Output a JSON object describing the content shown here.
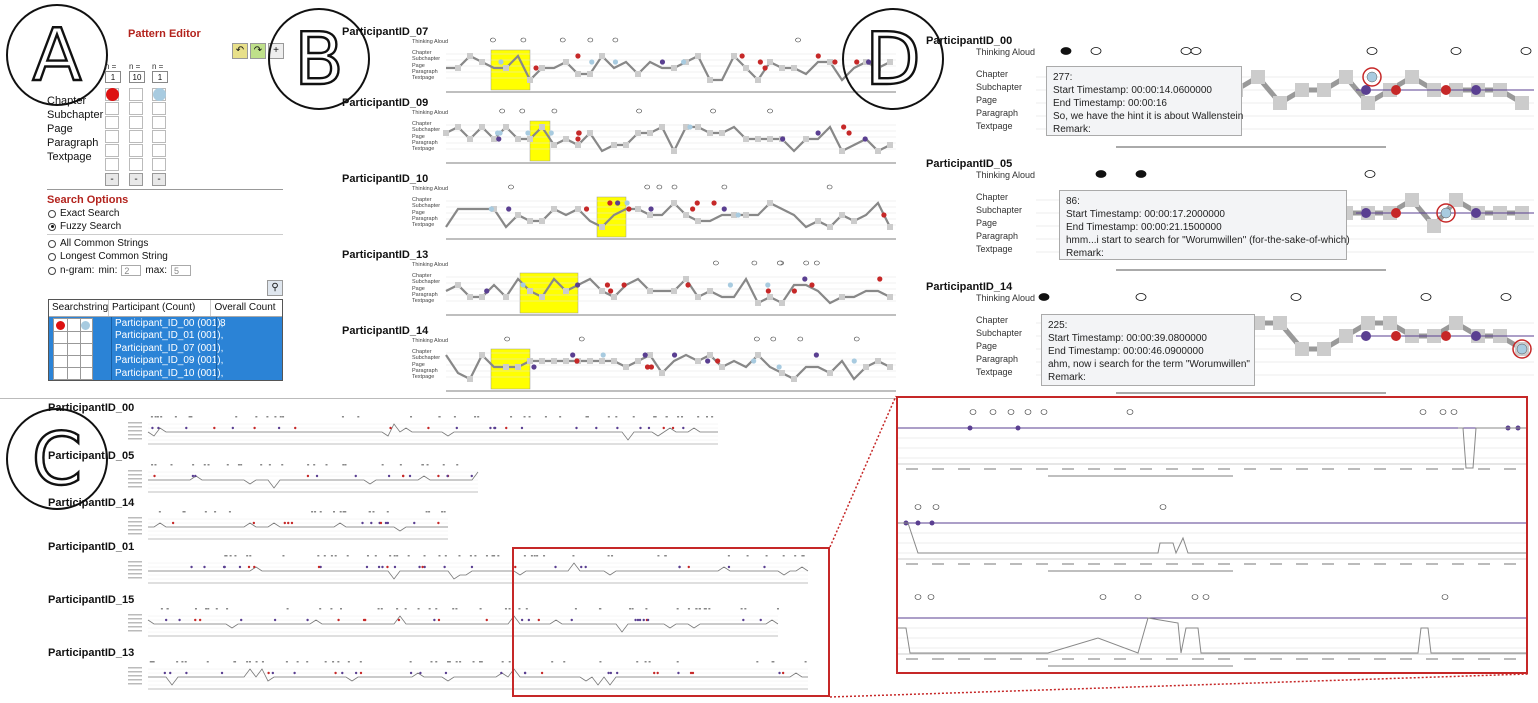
{
  "panel_letters": [
    "A",
    "B",
    "C",
    "D"
  ],
  "pattern_editor": {
    "title": "Pattern Editor",
    "toolbar_icons": [
      "undo-icon",
      "redo-icon",
      "add-icon"
    ],
    "n_label": "n =",
    "n_values": [
      "1",
      "10",
      "1"
    ],
    "levels": [
      "Chapter",
      "Subchapter",
      "Page",
      "Paragraph",
      "Textpage"
    ],
    "minus_label": "-",
    "search_options_title": "Search Options",
    "match_modes": [
      "Exact Search",
      "Fuzzy Search"
    ],
    "selected_match_mode": "Fuzzy Search",
    "string_modes": [
      "All Common Strings",
      "Longest Common String"
    ],
    "ngram_label": "n-gram:",
    "ngram_min_label": "min:",
    "ngram_min": "2",
    "ngram_max_label": "max:",
    "ngram_max": "5",
    "table_headers": [
      "Searchstring",
      "Participant (Count)",
      "Overall Count"
    ],
    "table_participants": [
      "Participant_ID_00 (001),",
      "Participant_ID_01 (001),",
      "Participant_ID_07 (001),",
      "Participant_ID_09 (001),",
      "Participant_ID_10 (001),"
    ],
    "table_overall_count": "8"
  },
  "panel_b": {
    "row_labels": [
      "Thinking Aloud",
      "Chapter",
      "Subchapter",
      "Page",
      "Paragraph",
      "Textpage"
    ],
    "participants": [
      "ParticipantID_07",
      "ParticipantID_09",
      "ParticipantID_10",
      "ParticipantID_13",
      "ParticipantID_14"
    ]
  },
  "panel_c": {
    "participants": [
      "ParticipantID_00",
      "ParticipantID_05",
      "ParticipantID_14",
      "ParticipantID_01",
      "ParticipantID_15",
      "ParticipantID_13"
    ]
  },
  "panel_d": {
    "row_labels": [
      "Thinking Aloud",
      "Chapter",
      "Subchapter",
      "Page",
      "Paragraph",
      "Textpage"
    ],
    "participants": [
      {
        "name": "ParticipantID_00",
        "tooltip": {
          "id": "277:",
          "start": "Start Timestamp: 00:00:14.0600000",
          "end": "End Timestamp: 00:00:16",
          "text": "So, we have the hint it is about Wallenstein",
          "remark": "Remark:"
        }
      },
      {
        "name": "ParticipantID_05",
        "tooltip": {
          "id": "86:",
          "start": "Start Timestamp: 00:00:17.2000000",
          "end": "End Timestamp: 00:00:21.1500000",
          "text": "hmm...i start to search for \"Worumwillen\" (for-the-sake-of-which)",
          "remark": "Remark:"
        }
      },
      {
        "name": "ParticipantID_14",
        "tooltip": {
          "id": "225:",
          "start": "Start Timestamp: 00:00:39.0800000",
          "end": "End Timestamp: 00:00:46.0900000",
          "text": "ahm, now i search for the term \"Worumwillen\"",
          "remark": "Remark:"
        }
      }
    ]
  },
  "colors": {
    "accent_red": "#b3231d",
    "selection_blue": "#2b83d6",
    "highlight_yellow": "#ffff00",
    "marker_purple": "#5a3f91",
    "marker_red": "#c62828",
    "marker_light_blue": "#a8cbe0"
  }
}
